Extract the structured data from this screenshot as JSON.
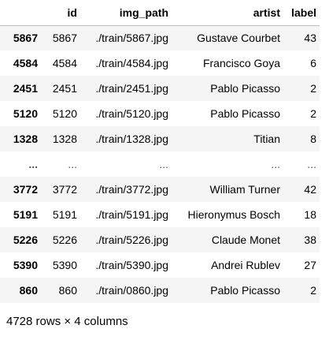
{
  "table": {
    "columns": [
      "id",
      "img_path",
      "artist",
      "label"
    ],
    "rows": [
      {
        "index": "5867",
        "id": "5867",
        "img_path": "./train/5867.jpg",
        "artist": "Gustave Courbet",
        "label": "43"
      },
      {
        "index": "4584",
        "id": "4584",
        "img_path": "./train/4584.jpg",
        "artist": "Francisco Goya",
        "label": "6"
      },
      {
        "index": "2451",
        "id": "2451",
        "img_path": "./train/2451.jpg",
        "artist": "Pablo Picasso",
        "label": "2"
      },
      {
        "index": "5120",
        "id": "5120",
        "img_path": "./train/5120.jpg",
        "artist": "Pablo Picasso",
        "label": "2"
      },
      {
        "index": "1328",
        "id": "1328",
        "img_path": "./train/1328.jpg",
        "artist": "Titian",
        "label": "8"
      },
      {
        "index": "...",
        "id": "...",
        "img_path": "...",
        "artist": "...",
        "label": "..."
      },
      {
        "index": "3772",
        "id": "3772",
        "img_path": "./train/3772.jpg",
        "artist": "William Turner",
        "label": "42"
      },
      {
        "index": "5191",
        "id": "5191",
        "img_path": "./train/5191.jpg",
        "artist": "Hieronymus Bosch",
        "label": "18"
      },
      {
        "index": "5226",
        "id": "5226",
        "img_path": "./train/5226.jpg",
        "artist": "Claude Monet",
        "label": "38"
      },
      {
        "index": "5390",
        "id": "5390",
        "img_path": "./train/5390.jpg",
        "artist": "Andrei Rublev",
        "label": "27"
      },
      {
        "index": "860",
        "id": "860",
        "img_path": "./train/0860.jpg",
        "artist": "Pablo Picasso",
        "label": "2"
      }
    ]
  },
  "footer": {
    "summary": "4728 rows × 4 columns"
  },
  "colors": {
    "stripe": "#f5f5f5",
    "header_border": "#bdbdbd"
  }
}
